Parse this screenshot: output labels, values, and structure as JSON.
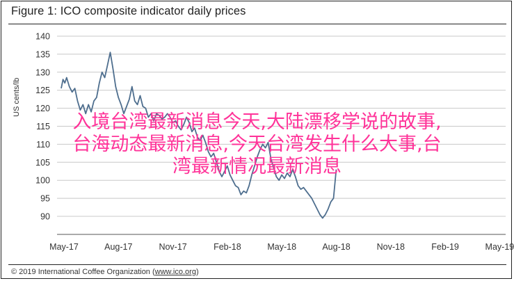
{
  "chart_data": {
    "type": "line",
    "title": "Figure 1: ICO composite indicator daily prices",
    "ylabel": "US cents/lb",
    "xlabel": "",
    "ylim": [
      90,
      140
    ],
    "yticks": [
      90,
      95,
      100,
      105,
      110,
      115,
      120,
      125,
      130,
      135,
      140
    ],
    "xtick_labels": [
      "May-17",
      "Aug-17",
      "Nov-17",
      "Feb-18",
      "May-18",
      "Aug-18",
      "Nov-18",
      "Feb-19",
      "May-19"
    ],
    "grid": "horizontal",
    "line_color": "#4e6e8e",
    "series": [
      {
        "values": [
          [
            0,
            125.5
          ],
          [
            0.1,
            128
          ],
          [
            0.2,
            127
          ],
          [
            0.3,
            128.5
          ],
          [
            0.45,
            126
          ],
          [
            0.6,
            124.5
          ],
          [
            0.75,
            125.5
          ],
          [
            0.9,
            122
          ],
          [
            1.05,
            119.5
          ],
          [
            1.2,
            121
          ],
          [
            1.35,
            118.5
          ],
          [
            1.5,
            121
          ],
          [
            1.65,
            119
          ],
          [
            1.8,
            122
          ],
          [
            1.95,
            123
          ],
          [
            2.1,
            127
          ],
          [
            2.25,
            130
          ],
          [
            2.4,
            128.5
          ],
          [
            2.55,
            132
          ],
          [
            2.7,
            135.5
          ],
          [
            2.85,
            131
          ],
          [
            3.0,
            126
          ],
          [
            3.15,
            123
          ],
          [
            3.3,
            121
          ],
          [
            3.45,
            118.5
          ],
          [
            3.6,
            120.5
          ],
          [
            3.75,
            122.5
          ],
          [
            3.9,
            126
          ],
          [
            4.05,
            122
          ],
          [
            4.2,
            121
          ],
          [
            4.35,
            123.5
          ],
          [
            4.5,
            120.5
          ],
          [
            4.65,
            120
          ],
          [
            4.8,
            117.5
          ],
          [
            4.95,
            118.5
          ],
          [
            5.1,
            116.5
          ],
          [
            5.25,
            118.5
          ],
          [
            5.4,
            118
          ],
          [
            5.55,
            117
          ],
          [
            5.7,
            117.5
          ],
          [
            5.85,
            118.5
          ],
          [
            6.0,
            117.5
          ],
          [
            6.15,
            116
          ],
          [
            6.3,
            116.5
          ],
          [
            6.45,
            115
          ],
          [
            6.6,
            114
          ],
          [
            6.75,
            115.5
          ],
          [
            6.9,
            117.5
          ],
          [
            7.05,
            116
          ],
          [
            7.2,
            113.5
          ],
          [
            7.35,
            114.5
          ],
          [
            7.5,
            112
          ],
          [
            7.65,
            111
          ],
          [
            7.8,
            112.5
          ],
          [
            7.95,
            110.5
          ],
          [
            8.1,
            108
          ],
          [
            8.25,
            106.5
          ],
          [
            8.4,
            107.5
          ],
          [
            8.55,
            105
          ],
          [
            8.7,
            102.5
          ],
          [
            8.85,
            101
          ],
          [
            9.0,
            102.5
          ],
          [
            9.15,
            104
          ],
          [
            9.3,
            101.5
          ],
          [
            9.45,
            100
          ],
          [
            9.6,
            98.5
          ],
          [
            9.75,
            98
          ],
          [
            9.9,
            96
          ],
          [
            10.05,
            97
          ],
          [
            10.2,
            96.5
          ],
          [
            10.35,
            98.5
          ],
          [
            10.5,
            101.5
          ],
          [
            10.65,
            104
          ],
          [
            10.8,
            106.5
          ],
          [
            10.95,
            108.5
          ],
          [
            11.1,
            110
          ],
          [
            11.25,
            109
          ],
          [
            11.4,
            110.5
          ],
          [
            11.55,
            106
          ],
          [
            11.7,
            103.5
          ],
          [
            11.85,
            101
          ],
          [
            12.0,
            100
          ],
          [
            12.15,
            101.5
          ],
          [
            12.3,
            100.5
          ],
          [
            12.45,
            102
          ],
          [
            12.6,
            101
          ],
          [
            12.75,
            103
          ],
          [
            12.9,
            101
          ],
          [
            13.05,
            98.5
          ],
          [
            13.2,
            97.5
          ],
          [
            13.35,
            98
          ],
          [
            13.5,
            97
          ],
          [
            13.65,
            96
          ],
          [
            13.8,
            95
          ],
          [
            13.95,
            93.5
          ],
          [
            14.1,
            92
          ],
          [
            14.25,
            90.5
          ],
          [
            14.4,
            89.5
          ],
          [
            14.55,
            90.5
          ],
          [
            14.7,
            92
          ],
          [
            14.85,
            94
          ],
          [
            15.0,
            95
          ],
          [
            15.15,
            103
          ]
        ]
      }
    ]
  },
  "overlay": {
    "line1": "入境台湾最新消息今天,大陆漂移学说的故事,",
    "line2": "台海动态最新消息,今天台湾发生什么大事,台",
    "line3": "湾最新情况最新消息"
  },
  "footer": {
    "copyright": "© 2019 International Coffee Organization (",
    "link": "www.ico.org",
    "close": ")"
  }
}
